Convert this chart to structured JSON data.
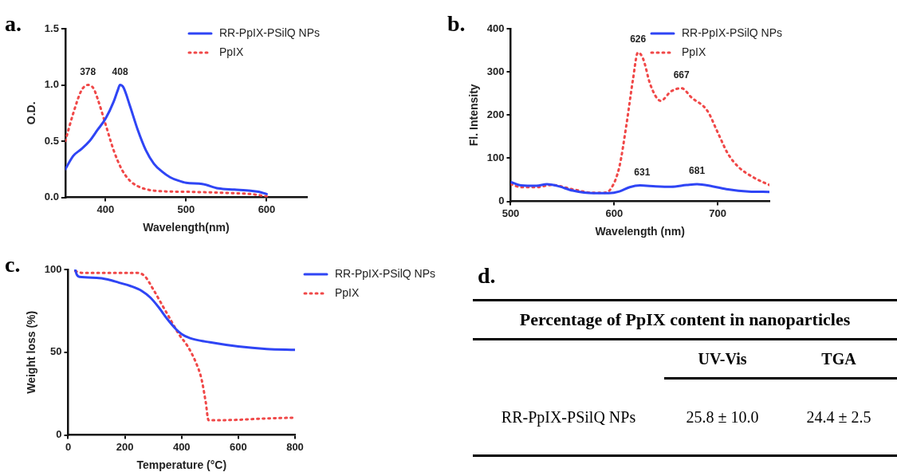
{
  "chart_data": [
    {
      "type": "line",
      "xlabel": "Wavelength(nm)",
      "ylabel": "O.D.",
      "xlim": [
        350,
        650
      ],
      "xticks": [
        400,
        500,
        600
      ],
      "ylim": [
        0,
        1.5
      ],
      "yticks": [
        {
          "value": 0,
          "label": "0.0"
        },
        {
          "value": 0.5,
          "label": "0.5"
        },
        {
          "value": 1,
          "label": "1.0"
        },
        {
          "value": 1.5,
          "label": "1.5"
        }
      ],
      "legend": "top right",
      "annotations": [
        "a.",
        {
          "text": "378",
          "x": 378,
          "y": 1.0
        },
        {
          "text": "408",
          "x": 418,
          "y": 1.0
        }
      ],
      "series": [
        {
          "name": "RR-PpIX-PSilQ NPs",
          "color": "#2f45f5",
          "line_style": "solid",
          "x": [
            350,
            360,
            370,
            380,
            390,
            400,
            410,
            415,
            418,
            422,
            430,
            440,
            450,
            460,
            470,
            480,
            490,
            500,
            520,
            540,
            560,
            580,
            590,
            600
          ],
          "values": [
            0.25,
            0.37,
            0.43,
            0.5,
            0.6,
            0.7,
            0.85,
            0.95,
            1.0,
            0.98,
            0.82,
            0.6,
            0.42,
            0.3,
            0.23,
            0.18,
            0.15,
            0.13,
            0.12,
            0.08,
            0.07,
            0.06,
            0.05,
            0.03
          ]
        },
        {
          "name": "PpIX",
          "color": "#f04848",
          "line_style": "dotted",
          "x": [
            350,
            360,
            370,
            378,
            385,
            390,
            400,
            410,
            420,
            430,
            440,
            460,
            500,
            550,
            580,
            600
          ],
          "values": [
            0.5,
            0.75,
            0.95,
            1.0,
            0.97,
            0.88,
            0.65,
            0.42,
            0.25,
            0.15,
            0.1,
            0.06,
            0.05,
            0.04,
            0.03,
            0.01
          ]
        }
      ]
    },
    {
      "type": "line",
      "xlabel": "Wavelength (nm)",
      "ylabel": "Fl. Intensity",
      "xlim": [
        500,
        750
      ],
      "xticks": [
        500,
        600,
        700
      ],
      "ylim": [
        0,
        400
      ],
      "yticks": [
        0,
        100,
        200,
        300,
        400
      ],
      "legend": "top right",
      "annotations": [
        "b.",
        {
          "text": "626",
          "x": 623,
          "y": 345
        },
        {
          "text": "667",
          "x": 665,
          "y": 262
        },
        {
          "text": "631",
          "x": 627,
          "y": 37
        },
        {
          "text": "681",
          "x": 680,
          "y": 40
        }
      ],
      "series": [
        {
          "name": "RR-PpIX-PSilQ NPs",
          "color": "#2f45f5",
          "line_style": "solid",
          "x": [
            500,
            510,
            525,
            535,
            545,
            560,
            580,
            595,
            605,
            615,
            625,
            640,
            655,
            670,
            680,
            695,
            710,
            730,
            750
          ],
          "values": [
            45,
            37,
            36,
            40,
            36,
            25,
            19,
            19,
            23,
            33,
            37,
            35,
            34,
            38,
            40,
            35,
            28,
            23,
            22
          ]
        },
        {
          "name": "PpIX",
          "color": "#f04848",
          "line_style": "dotted",
          "x": [
            500,
            510,
            525,
            540,
            560,
            580,
            590,
            597,
            605,
            612,
            618,
            623,
            628,
            635,
            645,
            655,
            665,
            675,
            690,
            700,
            710,
            720,
            735,
            750
          ],
          "values": [
            40,
            33,
            33,
            38,
            28,
            20,
            20,
            30,
            80,
            180,
            280,
            345,
            330,
            270,
            233,
            255,
            262,
            240,
            210,
            160,
            110,
            80,
            55,
            38
          ]
        }
      ]
    },
    {
      "type": "line",
      "xlabel": "Temperature (°C)",
      "ylabel": "Weight loss (%)",
      "xlim": [
        0,
        800
      ],
      "xticks": [
        0,
        200,
        400,
        600,
        800
      ],
      "ylim": [
        0,
        100
      ],
      "yticks": [
        0,
        50,
        100
      ],
      "legend": "right",
      "annotations": [
        "c."
      ],
      "series": [
        {
          "name": "RR-PpIX-PSilQ NPs",
          "color": "#2f45f5",
          "line_style": "solid",
          "x": [
            25,
            30,
            40,
            100,
            140,
            180,
            220,
            260,
            290,
            320,
            350,
            380,
            400,
            430,
            500,
            600,
            700,
            800
          ],
          "values": [
            100,
            97,
            95.5,
            95,
            94,
            92,
            90,
            87,
            83,
            77,
            70,
            64,
            61,
            58.5,
            56,
            53.5,
            52,
            51.5
          ]
        },
        {
          "name": "PpIX",
          "color": "#f04848",
          "line_style": "dotted",
          "x": [
            25,
            50,
            150,
            240,
            270,
            300,
            330,
            360,
            390,
            420,
            450,
            470,
            485,
            495,
            550,
            700,
            800
          ],
          "values": [
            99,
            98,
            98,
            98,
            96,
            88,
            79,
            70,
            61,
            54,
            44,
            34,
            20,
            9,
            9,
            10,
            10.5
          ]
        }
      ]
    },
    {
      "type": "other",
      "title": "Percentage of PpIX content in nanoparticles",
      "annotations": [
        "d.",
        "UV-Vis",
        "TGA",
        "RR-PpIX-PSilQ NPs",
        "25.8 ± 10.0",
        "24.4 ± 2.5"
      ]
    }
  ]
}
